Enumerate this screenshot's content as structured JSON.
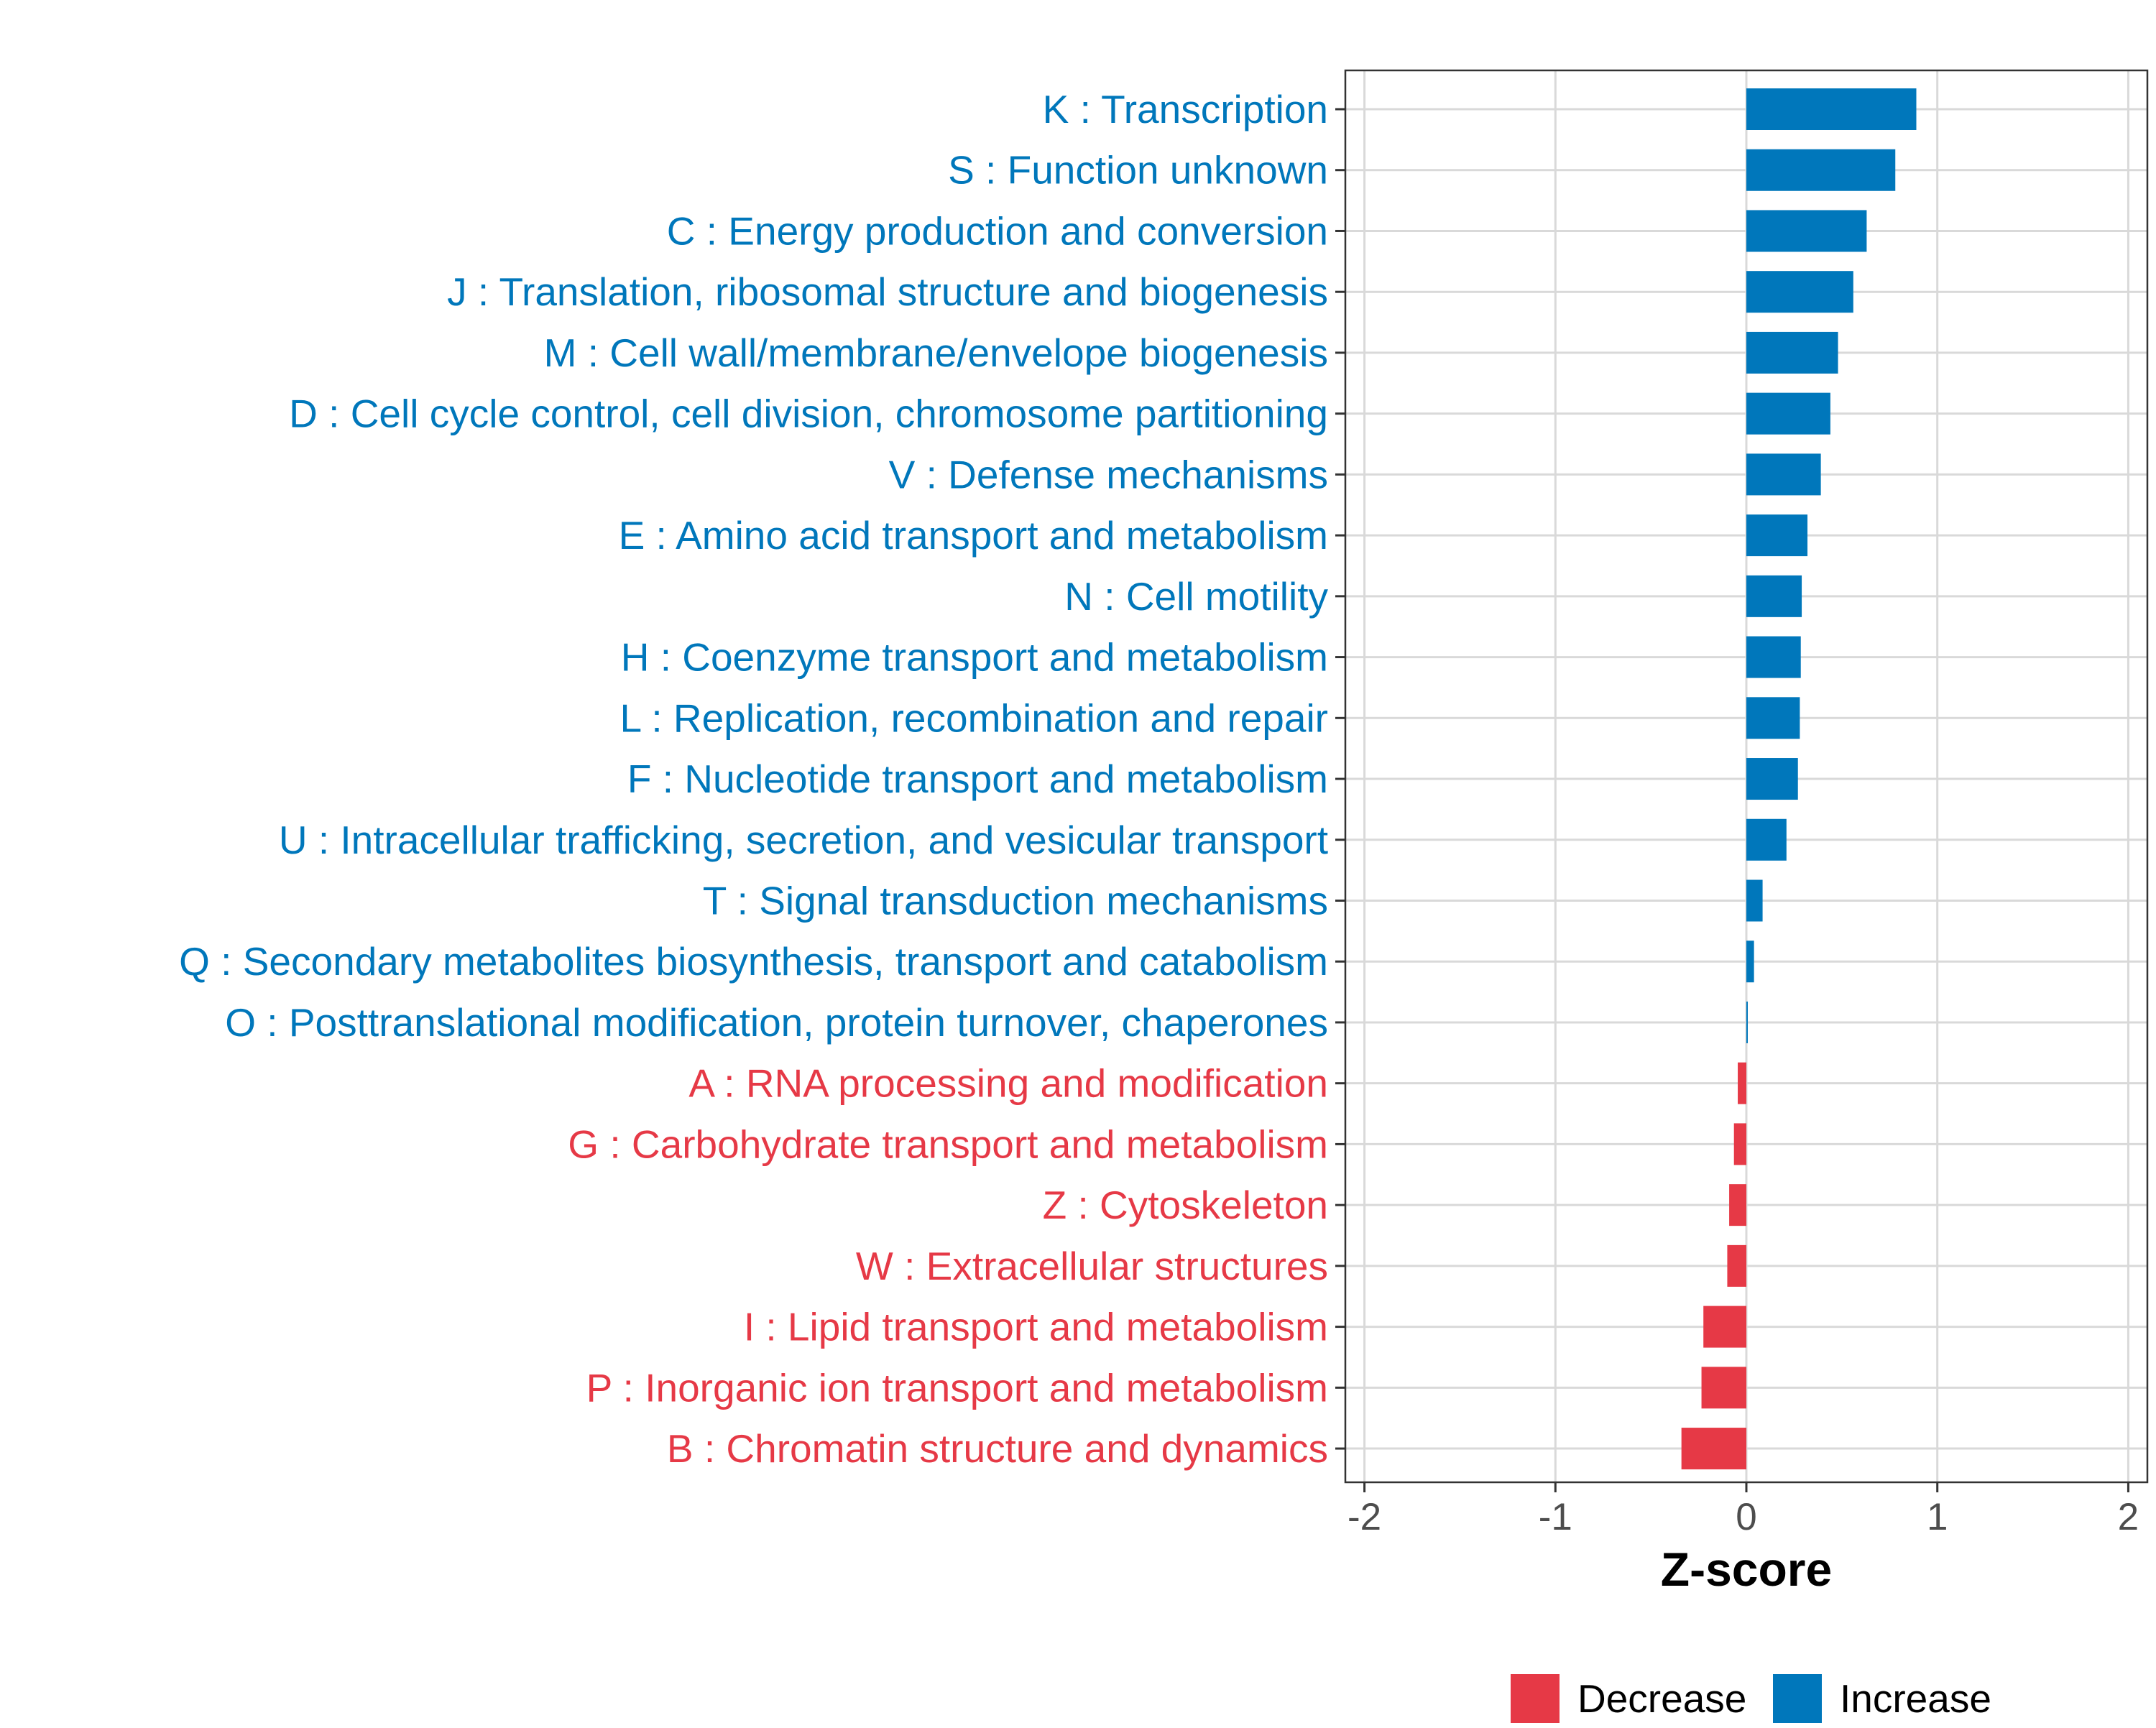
{
  "chart_data": {
    "type": "bar",
    "orientation": "horizontal",
    "title": "",
    "xlabel": "Z-score",
    "ylabel": "",
    "xlim": [
      -2.1,
      2.1
    ],
    "xticks": [
      -2,
      -1,
      0,
      1,
      2
    ],
    "xtick_labels": [
      "-2",
      "-1",
      "0",
      "1",
      "2"
    ],
    "grid": true,
    "legend_position": "bottom",
    "colors": {
      "Increase": "#0077bb",
      "Decrease": "#e63946",
      "grid": "#d9d9d9",
      "panel_border": "#333333",
      "tick_text": "#4d4d4d"
    },
    "legend": [
      {
        "name": "Decrease",
        "label": "Decrease"
      },
      {
        "name": "Increase",
        "label": "Increase"
      }
    ],
    "categories": [
      "K : Transcription",
      "S : Function unknown",
      "C : Energy production and conversion",
      "J : Translation, ribosomal structure and biogenesis",
      "M : Cell wall/membrane/envelope biogenesis",
      "D : Cell cycle control, cell division, chromosome partitioning",
      "V : Defense mechanisms",
      "E : Amino acid transport and metabolism",
      "N : Cell motility",
      "H : Coenzyme transport and metabolism",
      "L : Replication, recombination and repair",
      "F : Nucleotide transport and metabolism",
      "U : Intracellular trafficking, secretion, and vesicular transport",
      "T : Signal transduction mechanisms",
      "Q : Secondary metabolites biosynthesis, transport and catabolism",
      "O : Posttranslational modification, protein turnover, chaperones",
      "A : RNA processing and modification",
      "G : Carbohydrate transport and metabolism",
      "Z : Cytoskeleton",
      "W : Extracellular structures",
      "I : Lipid transport and metabolism",
      "P : Inorganic ion transport and metabolism",
      "B : Chromatin structure and dynamics"
    ],
    "values": [
      0.89,
      0.78,
      0.63,
      0.56,
      0.48,
      0.44,
      0.39,
      0.32,
      0.29,
      0.285,
      0.28,
      0.27,
      0.21,
      0.085,
      0.04,
      0.005,
      -0.045,
      -0.065,
      -0.09,
      -0.1,
      -0.225,
      -0.235,
      -0.34
    ],
    "groups": [
      "Increase",
      "Increase",
      "Increase",
      "Increase",
      "Increase",
      "Increase",
      "Increase",
      "Increase",
      "Increase",
      "Increase",
      "Increase",
      "Increase",
      "Increase",
      "Increase",
      "Increase",
      "Increase",
      "Decrease",
      "Decrease",
      "Decrease",
      "Decrease",
      "Decrease",
      "Decrease",
      "Decrease"
    ]
  }
}
